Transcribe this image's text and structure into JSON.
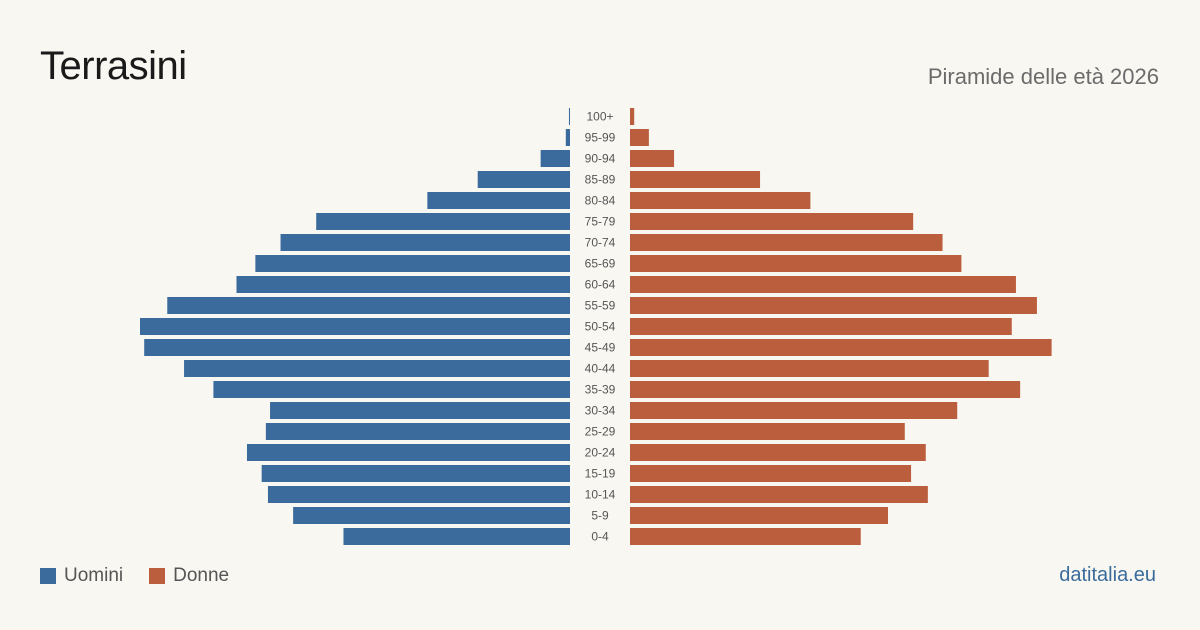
{
  "title": "Terrasini",
  "subtitle": "Piramide delle età 2026",
  "source": "datitalia.eu",
  "colors": {
    "men": "#3a6b9c",
    "women": "#bb5e3d",
    "label": "#555555",
    "source": "#3a6b9c"
  },
  "legend": {
    "men": "Uomini",
    "women": "Donne"
  },
  "chart_data": {
    "type": "bar",
    "orientation": "horizontal-pyramid",
    "categories": [
      "100+",
      "95-99",
      "90-94",
      "85-89",
      "80-84",
      "75-79",
      "70-74",
      "65-69",
      "60-64",
      "55-59",
      "50-54",
      "45-49",
      "40-44",
      "35-39",
      "30-34",
      "25-29",
      "20-24",
      "15-19",
      "10-14",
      "5-9",
      "0-4"
    ],
    "series": [
      {
        "name": "Uomini",
        "values": [
          0.5,
          2,
          14,
          44,
          68,
          121,
          138,
          150,
          159,
          192,
          205,
          203,
          184,
          170,
          143,
          145,
          154,
          147,
          144,
          132,
          108
        ]
      },
      {
        "name": "Donne",
        "values": [
          2,
          9,
          21,
          62,
          86,
          135,
          149,
          158,
          184,
          194,
          182,
          201,
          171,
          186,
          156,
          131,
          141,
          134,
          142,
          123,
          110
        ]
      }
    ]
  }
}
